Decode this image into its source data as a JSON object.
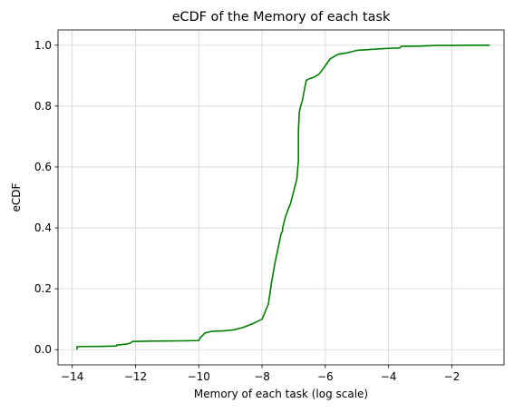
{
  "chart_data": {
    "type": "line",
    "title": "eCDF of the Memory of each task",
    "xlabel": "Memory of each task (log scale)",
    "ylabel": "eCDF",
    "xlim": [
      -14.45,
      -0.35
    ],
    "ylim": [
      -0.05,
      1.05
    ],
    "xticks": [
      -14,
      -12,
      -10,
      -8,
      -6,
      -4,
      -2
    ],
    "yticks": [
      0.0,
      0.2,
      0.4,
      0.6,
      0.8,
      1.0
    ],
    "xtick_labels": [
      "−14",
      "−12",
      "−10",
      "−8",
      "−6",
      "−4",
      "−2"
    ],
    "ytick_labels": [
      "0.0",
      "0.2",
      "0.4",
      "0.6",
      "0.8",
      "1.0"
    ],
    "grid": true,
    "series": [
      {
        "color": "#008000",
        "x": [
          -13.85,
          -13.85,
          -13.0,
          -12.6,
          -12.6,
          -12.3,
          -12.15,
          -12.1,
          -11.5,
          -10.5,
          -10.0,
          -9.95,
          -9.8,
          -9.6,
          -9.2,
          -8.9,
          -8.6,
          -8.3,
          -8.0,
          -7.8,
          -7.7,
          -7.6,
          -7.5,
          -7.4,
          -7.35,
          -7.35,
          -7.25,
          -7.1,
          -7.0,
          -6.9,
          -6.85,
          -6.85,
          -6.82,
          -6.78,
          -6.72,
          -6.65,
          -6.6,
          -6.5,
          -6.35,
          -6.2,
          -6.05,
          -5.85,
          -5.6,
          -5.3,
          -5.0,
          -4.7,
          -4.3,
          -3.9,
          -3.65,
          -3.6,
          -3.0,
          -2.5,
          -2.0,
          -1.5,
          -0.8
        ],
        "y": [
          0.0,
          0.01,
          0.011,
          0.012,
          0.015,
          0.018,
          0.022,
          0.027,
          0.028,
          0.029,
          0.03,
          0.04,
          0.055,
          0.06,
          0.062,
          0.065,
          0.073,
          0.085,
          0.1,
          0.15,
          0.22,
          0.28,
          0.33,
          0.38,
          0.39,
          0.4,
          0.44,
          0.48,
          0.52,
          0.56,
          0.62,
          0.72,
          0.78,
          0.8,
          0.82,
          0.86,
          0.885,
          0.89,
          0.895,
          0.905,
          0.925,
          0.955,
          0.97,
          0.975,
          0.983,
          0.985,
          0.988,
          0.99,
          0.991,
          0.996,
          0.997,
          0.999,
          0.999,
          1.0,
          1.0
        ]
      }
    ]
  }
}
